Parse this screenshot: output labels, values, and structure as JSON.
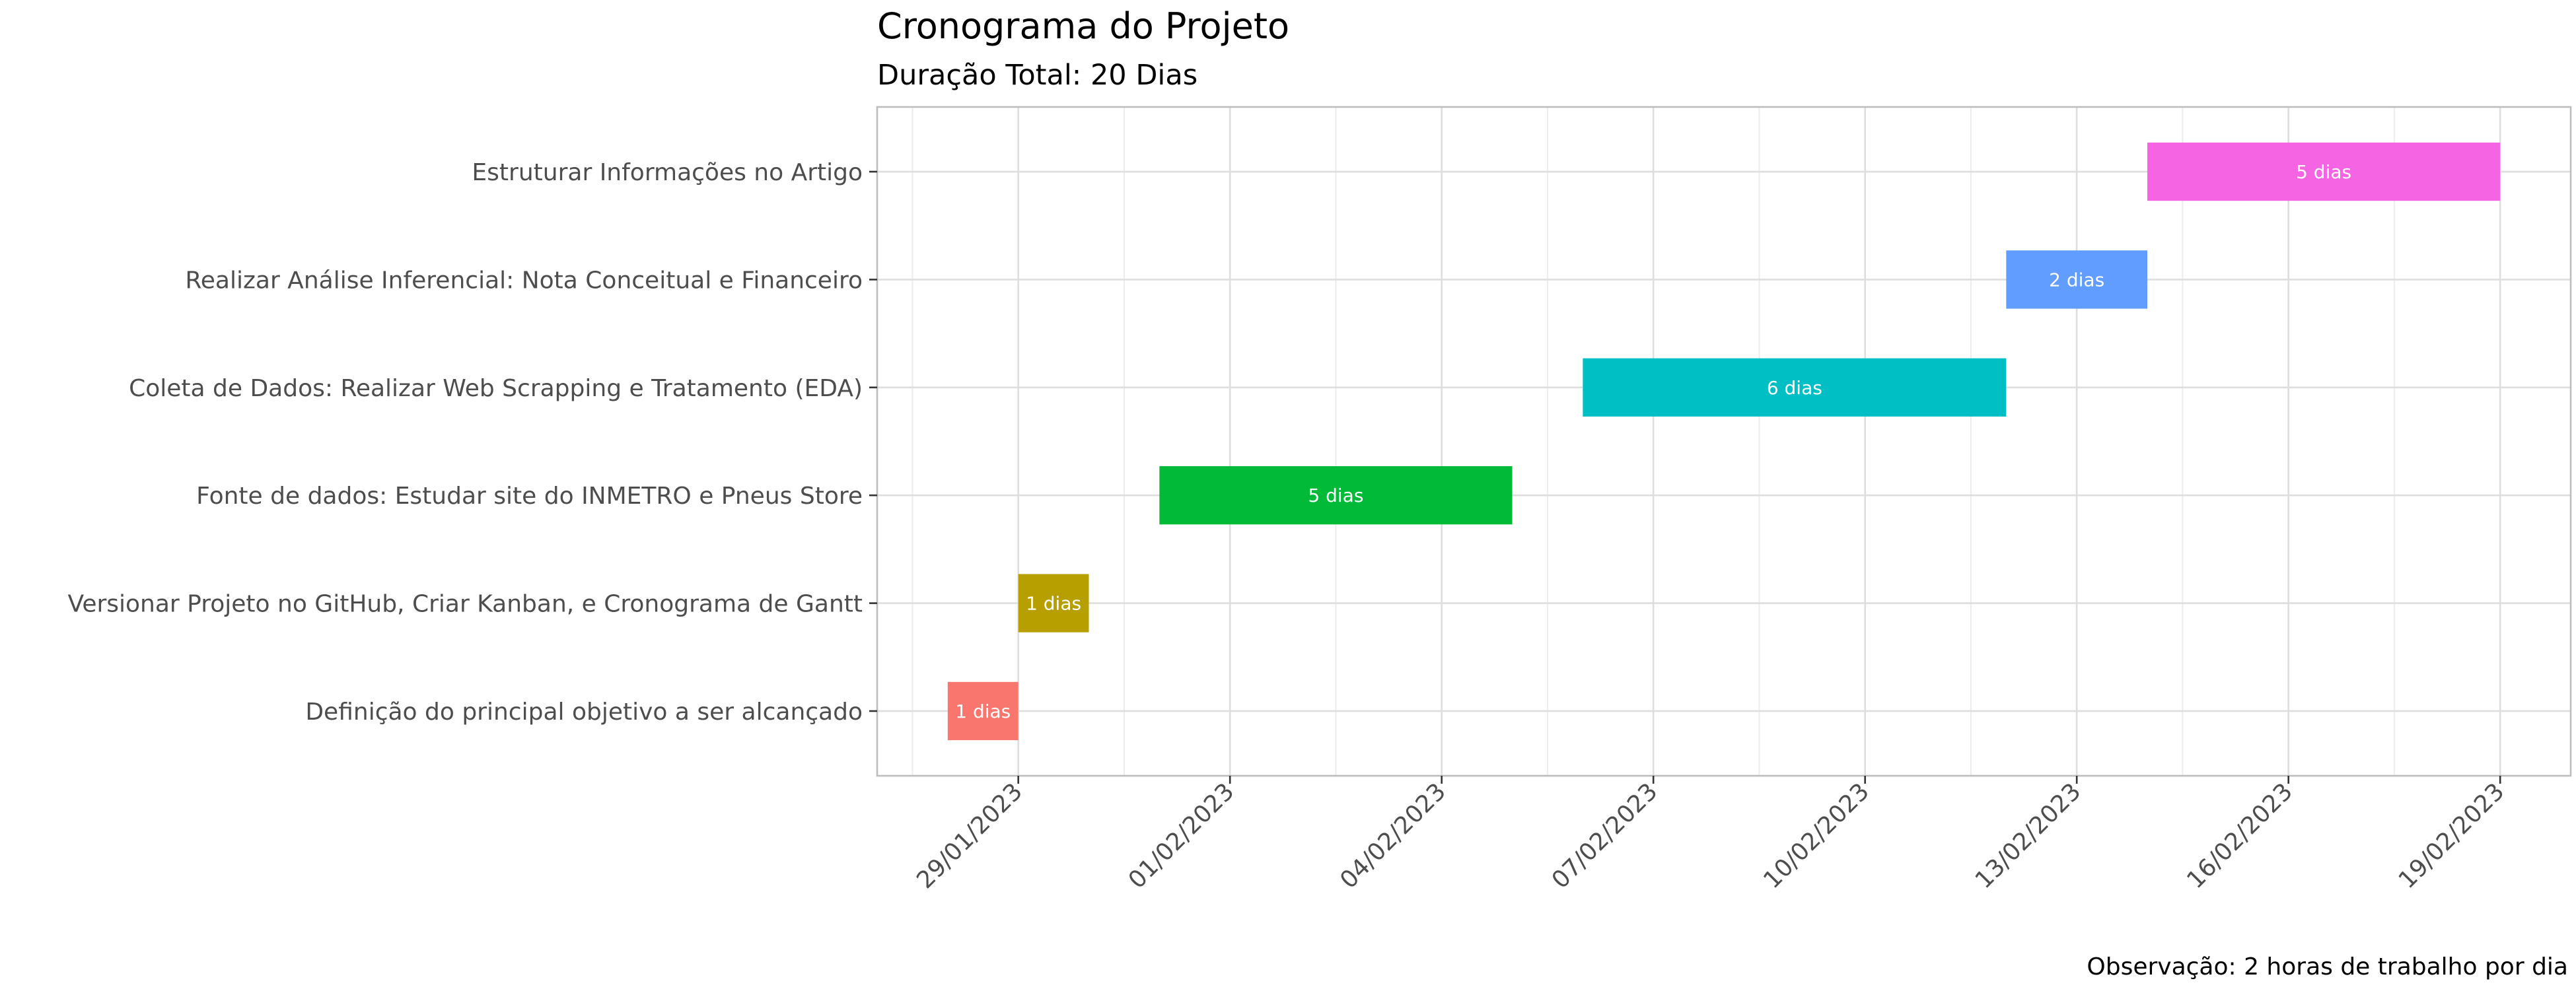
{
  "chart_data": {
    "type": "gantt",
    "title": "Cronograma do Projeto",
    "subtitle": "Duração Total: 20 Dias",
    "caption": "Observação: 2 horas de trabalho por dia",
    "xlabel": "",
    "ylabel": "",
    "grid": true,
    "legend": "none",
    "xlim": [
      "2023-01-27",
      "2023-02-20"
    ],
    "x_ticks": [
      {
        "date": "2023-01-29",
        "label": "29/01/2023"
      },
      {
        "date": "2023-02-01",
        "label": "01/02/2023"
      },
      {
        "date": "2023-02-04",
        "label": "04/02/2023"
      },
      {
        "date": "2023-02-07",
        "label": "07/02/2023"
      },
      {
        "date": "2023-02-10",
        "label": "10/02/2023"
      },
      {
        "date": "2023-02-13",
        "label": "13/02/2023"
      },
      {
        "date": "2023-02-16",
        "label": "16/02/2023"
      },
      {
        "date": "2023-02-19",
        "label": "19/02/2023"
      }
    ],
    "tasks": [
      {
        "name": "Definição do principal objetivo a ser alcançado",
        "start": "2023-01-28",
        "end": "2023-01-29",
        "label": "1 dias",
        "color": "#F8766D"
      },
      {
        "name": "Versionar Projeto no GitHub, Criar Kanban, e Cronograma de Gantt",
        "start": "2023-01-29",
        "end": "2023-01-30",
        "label": "1 dias",
        "color": "#B79F00"
      },
      {
        "name": "Fonte de dados: Estudar site do INMETRO e Pneus Store",
        "start": "2023-01-31",
        "end": "2023-02-05",
        "label": "5 dias",
        "color": "#00BA38"
      },
      {
        "name": "Coleta de Dados: Realizar Web Scrapping e Tratamento (EDA)",
        "start": "2023-02-06",
        "end": "2023-02-12",
        "label": "6 dias",
        "color": "#00BFC4"
      },
      {
        "name": "Realizar Análise Inferencial: Nota Conceitual e Financeiro",
        "start": "2023-02-12",
        "end": "2023-02-14",
        "label": "2 dias",
        "color": "#619CFF"
      },
      {
        "name": "Estruturar Informações no Artigo",
        "start": "2023-02-14",
        "end": "2023-02-19",
        "label": "5 dias",
        "color": "#F564E3"
      }
    ]
  }
}
